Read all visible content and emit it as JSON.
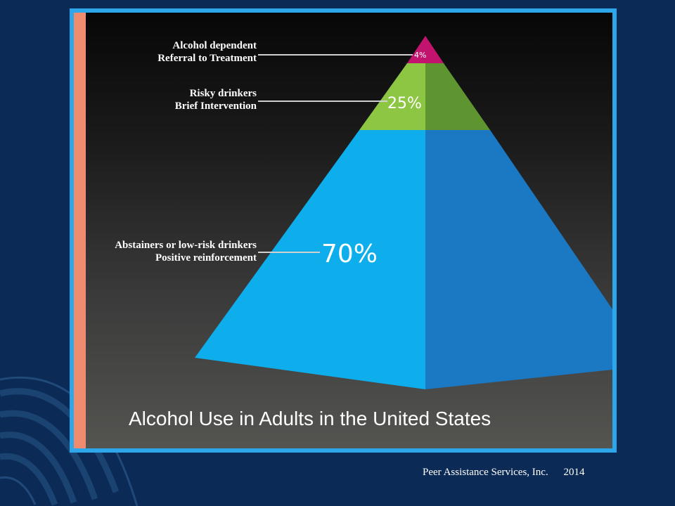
{
  "levels": [
    {
      "percent": "4%",
      "line1": "Alcohol dependent",
      "line2": "Referral to Treatment",
      "color": "#c2136e"
    },
    {
      "percent": "25%",
      "line1": "Risky drinkers",
      "line2": "Brief Intervention",
      "color": "#8cc642"
    },
    {
      "percent": "70%",
      "line1": "Abstainers or low-risk drinkers",
      "line2": "Positive reinforcement",
      "color": "#0eaeed"
    }
  ],
  "caption": "Alcohol Use in Adults in the United States",
  "footer": {
    "organization": "Peer Assistance Services, Inc.",
    "year": "2014"
  }
}
